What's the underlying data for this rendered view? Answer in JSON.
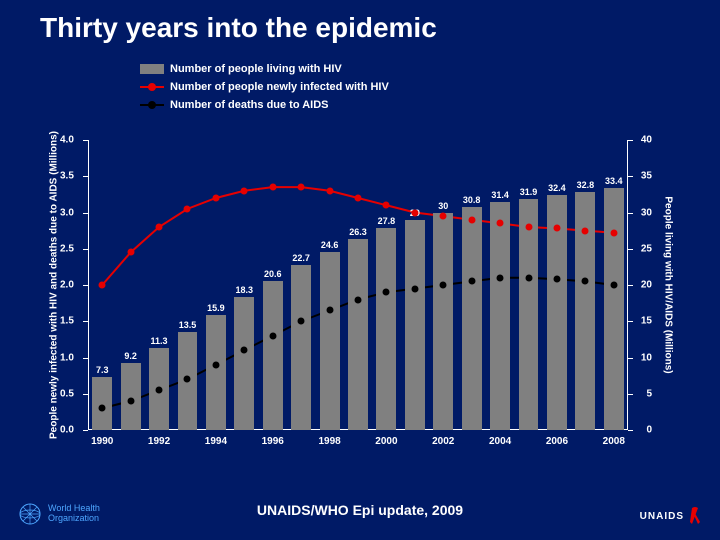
{
  "slide": {
    "background_color": "#001a66",
    "text_color": "#ffffff",
    "title": "Thirty years into the epidemic",
    "title_fontsize": 28,
    "caption": "UNAIDS/WHO Epi update, 2009"
  },
  "chart": {
    "type": "combo-bar-line",
    "plot_background": "#001a66",
    "axis_color": "#ffffff",
    "years": [
      1990,
      1991,
      1992,
      1993,
      1994,
      1995,
      1996,
      1997,
      1998,
      1999,
      2000,
      2001,
      2002,
      2003,
      2004,
      2005,
      2006,
      2007,
      2008
    ],
    "x_tick_labels": [
      "1990",
      "1992",
      "1994",
      "1996",
      "1998",
      "2000",
      "2002",
      "2004",
      "2006",
      "2008"
    ],
    "x_tick_years": [
      1990,
      1992,
      1994,
      1996,
      1998,
      2000,
      2002,
      2004,
      2006,
      2008
    ],
    "left_axis": {
      "label": "People newly infected with HIV and deaths due to AIDS (Millions)",
      "min": 0.0,
      "max": 4.0,
      "step": 0.5,
      "ticks": [
        "0.0",
        "0.5",
        "1.0",
        "1.5",
        "2.0",
        "2.5",
        "3.0",
        "3.5",
        "4.0"
      ]
    },
    "right_axis": {
      "label": "People living with HIV/AIDS (Millions)",
      "min": 0,
      "max": 40,
      "step": 5,
      "ticks": [
        "0",
        "5",
        "10",
        "15",
        "20",
        "25",
        "30",
        "35",
        "40"
      ]
    },
    "bars": {
      "color": "#808080",
      "width_fraction": 0.7,
      "values": [
        7.3,
        9.2,
        11.3,
        13.5,
        15.9,
        18.3,
        20.6,
        22.7,
        24.6,
        26.3,
        27.8,
        29.0,
        30.0,
        30.8,
        31.4,
        31.9,
        32.4,
        32.8,
        33.4
      ],
      "label_color": "#ffffff",
      "label_fontsize": 9
    },
    "series": [
      {
        "name": "newly_infected",
        "line_color": "#e60000",
        "marker_color": "#e60000",
        "marker_size": 7,
        "line_width": 2,
        "values": [
          2.0,
          2.45,
          2.8,
          3.05,
          3.2,
          3.3,
          3.35,
          3.35,
          3.3,
          3.2,
          3.1,
          3.0,
          2.95,
          2.9,
          2.85,
          2.8,
          2.78,
          2.75,
          2.72
        ]
      },
      {
        "name": "deaths",
        "line_color": "#000000",
        "marker_color": "#000000",
        "marker_size": 7,
        "line_width": 2,
        "values": [
          0.3,
          0.4,
          0.55,
          0.7,
          0.9,
          1.1,
          1.3,
          1.5,
          1.65,
          1.8,
          1.9,
          1.95,
          2.0,
          2.05,
          2.1,
          2.1,
          2.08,
          2.05,
          2.0
        ]
      }
    ],
    "legend": {
      "items": [
        {
          "kind": "bar",
          "color": "#808080",
          "label": "Number of people living with HIV"
        },
        {
          "kind": "line",
          "color": "#e60000",
          "label": "Number of people newly infected with HIV"
        },
        {
          "kind": "line",
          "color": "#000000",
          "label": "Number of deaths due to AIDS"
        }
      ]
    }
  },
  "logos": {
    "who": {
      "line1": "World Health",
      "line2": "Organization",
      "accent": "#4da6ff"
    },
    "unaids": {
      "text": "UNAIDS",
      "ribbon_color": "#e60000"
    }
  }
}
